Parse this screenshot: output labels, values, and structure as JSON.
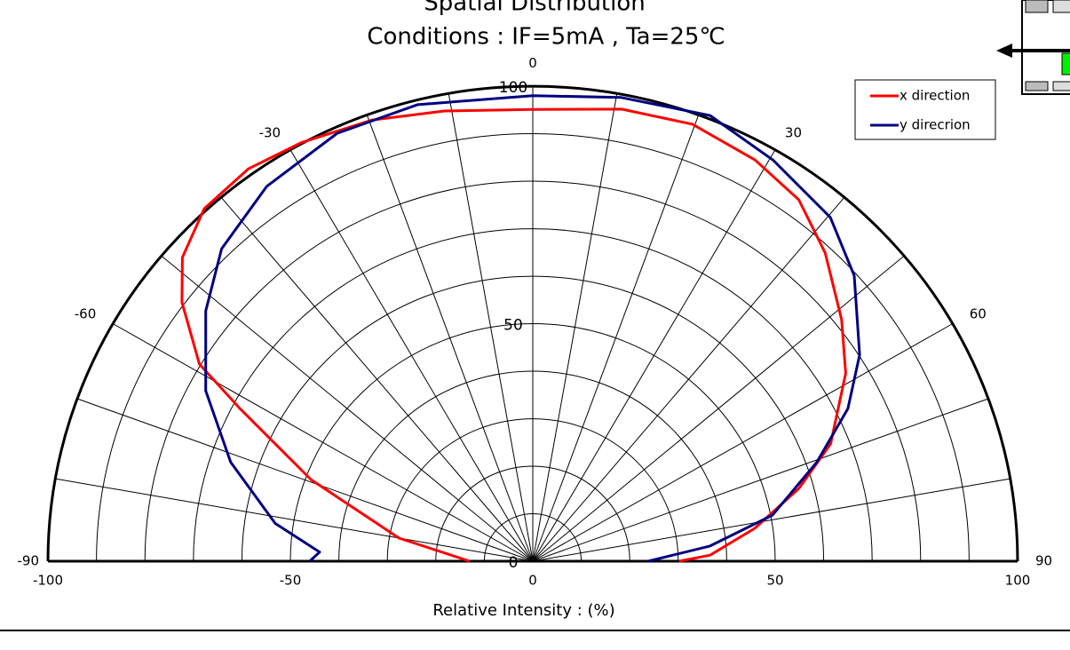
{
  "chart_data": {
    "type": "polar",
    "title": "Spatial Distribution",
    "subtitle": "Conditions : IF=5mA , Ta=25℃",
    "xlabel": "Relative Intensity : (%)",
    "rlim": [
      0,
      100
    ],
    "rticks": [
      0,
      50,
      100
    ],
    "rgrid": [
      10,
      20,
      30,
      40,
      50,
      60,
      70,
      80,
      90,
      100
    ],
    "thetalim": [
      -90,
      90
    ],
    "thetaticks": [
      -90,
      -60,
      -30,
      0,
      30,
      60,
      90
    ],
    "thetagrid": [
      -90,
      -80,
      -70,
      -60,
      -50,
      -40,
      -30,
      -20,
      -10,
      0,
      10,
      20,
      30,
      40,
      50,
      60,
      70,
      80,
      90
    ],
    "xlim": [
      -100,
      100
    ],
    "xticks": [
      -100,
      -50,
      0,
      50,
      100
    ],
    "legend": "upper right",
    "series": [
      {
        "name": "x direction",
        "color": "#ff0000",
        "theta": [
          -90,
          -80,
          -69.4,
          -62,
          -58.9,
          -53,
          -48.5,
          -42.4,
          -35.4,
          -28.4,
          -19.6,
          -10.9,
          0,
          10.9,
          19.7,
          28.5,
          35.8,
          42.9,
          51.4,
          58.5,
          68.1,
          74.4,
          81.4,
          88,
          90
        ],
        "values": [
          13,
          28,
          48.9,
          68.4,
          80.3,
          90.6,
          96.5,
          100.5,
          101.3,
          100.2,
          98.6,
          96.5,
          95.1,
          96.9,
          97.7,
          96.1,
          93.8,
          88.6,
          81.5,
          75.7,
          66.2,
          57,
          46.3,
          36.6,
          30.2
        ]
      },
      {
        "name": "y direcrion",
        "color": "#000080",
        "theta": [
          -90,
          -87.5,
          -81.5,
          -71.5,
          -62,
          -52,
          -44.3,
          -34.8,
          -24.1,
          -13.9,
          0,
          10.6,
          21.3,
          30.4,
          40.3,
          47.8,
          57.2,
          63.7,
          70.4,
          78.9,
          85,
          90
        ],
        "values": [
          46,
          44,
          53.7,
          65.7,
          76.4,
          85.6,
          91.9,
          96.1,
          98.7,
          99,
          98,
          99.3,
          100.7,
          97.9,
          94.9,
          89.5,
          80.2,
          72.5,
          62.2,
          50.4,
          36.7,
          23.8
        ]
      }
    ]
  }
}
